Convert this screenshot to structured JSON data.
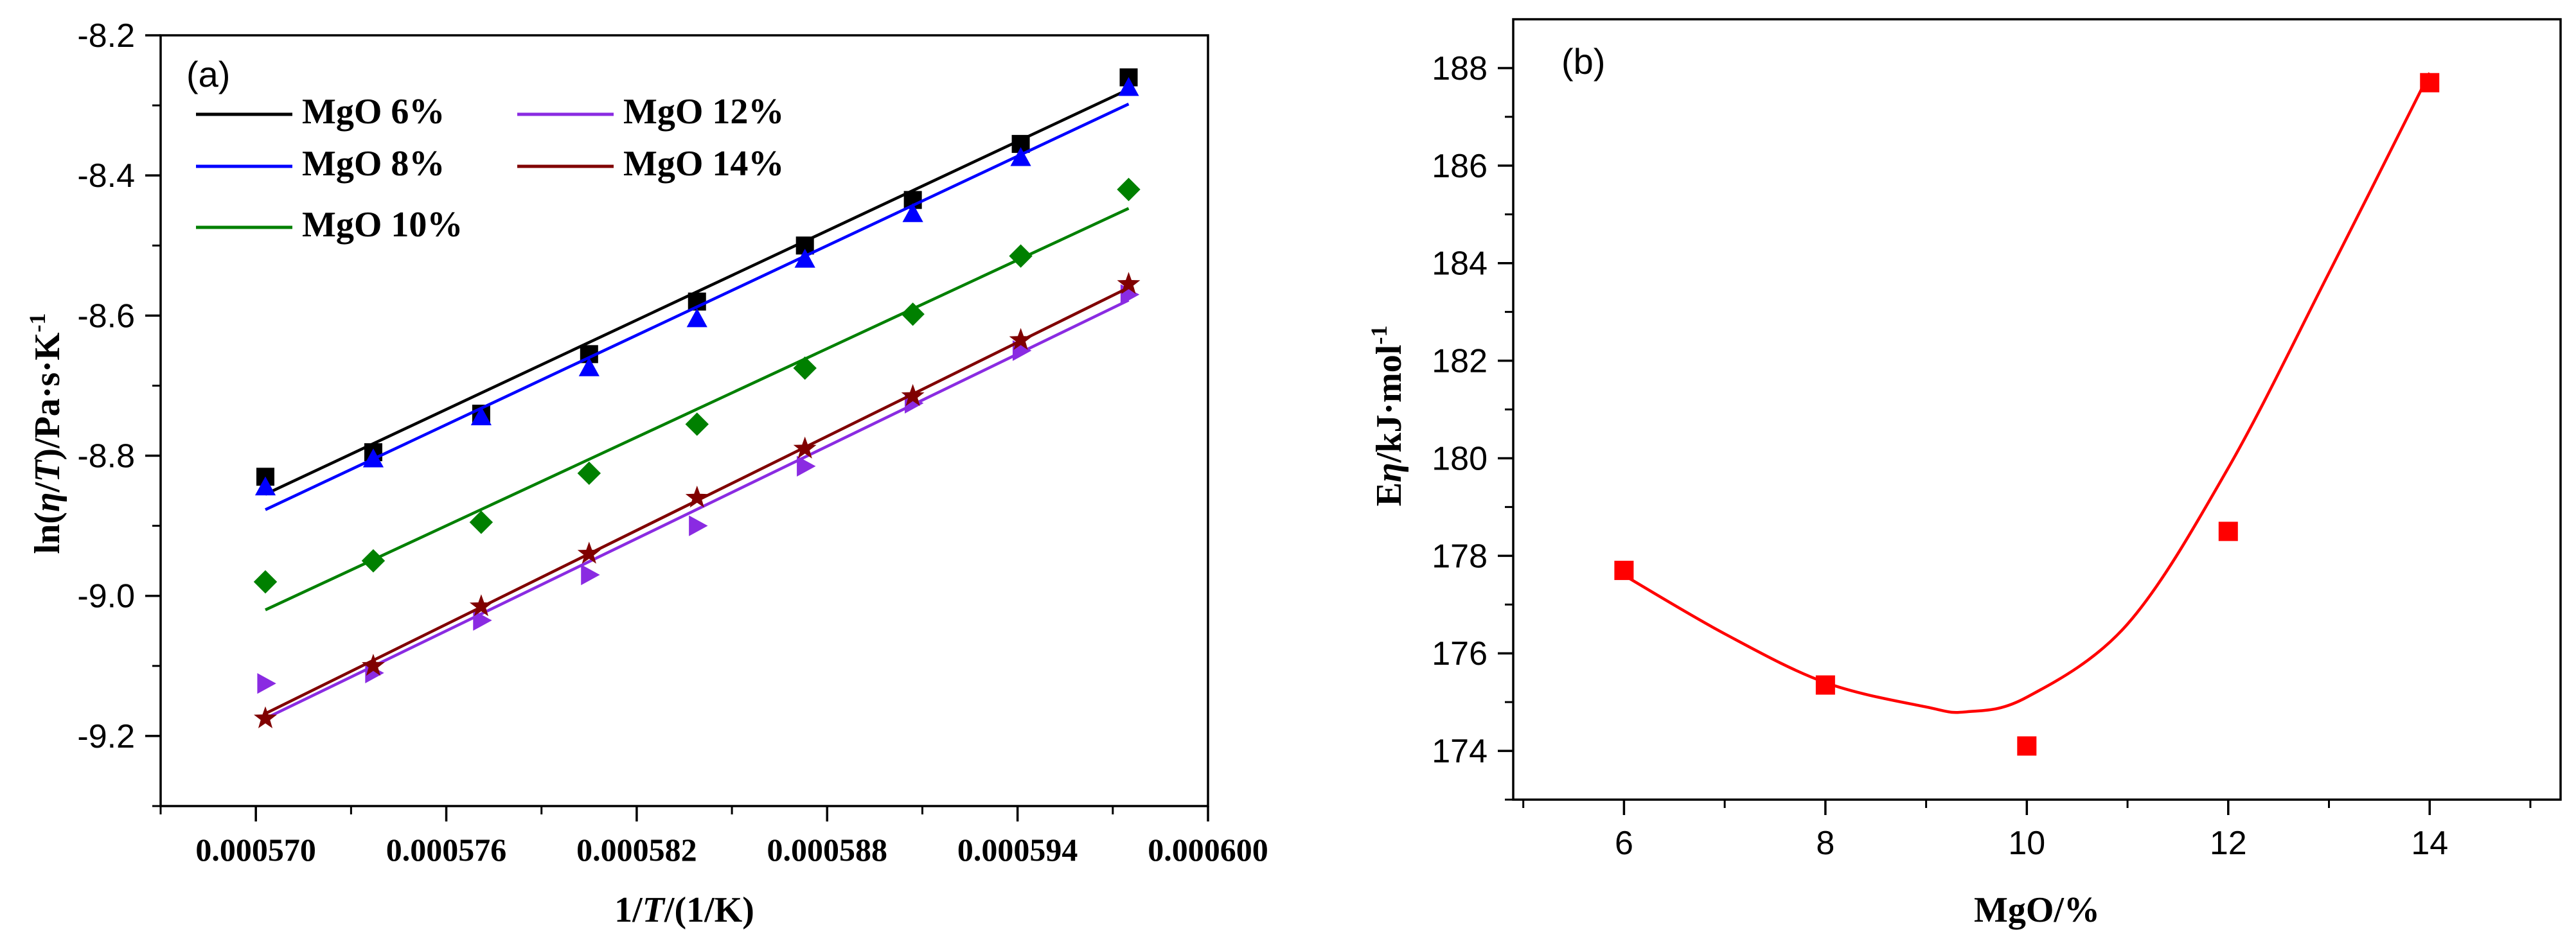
{
  "chart_data": [
    {
      "panel": "(a)",
      "type": "scatter",
      "xlabel_parts": [
        "1/",
        "T",
        "/(1/K)"
      ],
      "ylabel_parts": [
        "ln(",
        "η",
        "/",
        "T",
        ")/Pa·s·K",
        "-1"
      ],
      "xlim": [
        0.000567,
        0.0006
      ],
      "ylim": [
        -9.3,
        -8.2
      ],
      "xticks": [
        0.00057,
        0.000576,
        0.000582,
        0.000588,
        0.000594,
        0.0006
      ],
      "xtick_labels": [
        "0.000570",
        "0.000576",
        "0.000582",
        "0.000588",
        "0.000594",
        "0.000600"
      ],
      "yticks": [
        -9.2,
        -9.0,
        -8.8,
        -8.6,
        -8.4,
        -8.2
      ],
      "ytick_labels": [
        "-9.2",
        "-9.0",
        "-8.8",
        "-8.6",
        "-8.4",
        "-8.2"
      ],
      "x": [
        0.0005703,
        0.0005737,
        0.0005771,
        0.0005805,
        0.0005839,
        0.0005873,
        0.0005907,
        0.0005941,
        0.0005975
      ],
      "series": [
        {
          "name": "MgO 6%",
          "color": "#000000",
          "marker": "square",
          "values": [
            -8.83,
            -8.795,
            -8.74,
            -8.655,
            -8.58,
            -8.5,
            -8.435,
            -8.355,
            -8.26
          ],
          "fit": [
            -8.855,
            -8.277
          ]
        },
        {
          "name": "MgO 8%",
          "color": "#0000ff",
          "marker": "triangle-up",
          "values": [
            -8.845,
            -8.805,
            -8.745,
            -8.675,
            -8.605,
            -8.52,
            -8.455,
            -8.375,
            -8.275
          ],
          "fit": [
            -8.877,
            -8.298
          ]
        },
        {
          "name": "MgO 10%",
          "color": "#008000",
          "marker": "diamond",
          "values": [
            -8.98,
            -8.95,
            -8.895,
            -8.825,
            -8.755,
            -8.675,
            -8.598,
            -8.515,
            -8.42
          ],
          "fit": [
            -9.02,
            -8.447
          ]
        },
        {
          "name": "MgO 12%",
          "color": "#8a2be2",
          "marker": "triangle-right",
          "values": [
            -9.125,
            -9.11,
            -9.035,
            -8.97,
            -8.9,
            -8.815,
            -8.725,
            -8.65,
            -8.57
          ],
          "fit": [
            -9.175,
            -8.578
          ]
        },
        {
          "name": "MgO 14%",
          "color": "#800000",
          "marker": "star",
          "values": [
            -9.175,
            -9.1,
            -9.015,
            -8.94,
            -8.86,
            -8.79,
            -8.715,
            -8.635,
            -8.555
          ],
          "fit": [
            -9.168,
            -8.56
          ]
        }
      ]
    },
    {
      "panel": "(b)",
      "type": "scatter",
      "xlabel": "MgO/%",
      "ylabel_parts": [
        "E",
        "η",
        "/kJ·mol",
        "-1"
      ],
      "xlim": [
        4.9,
        15.3
      ],
      "ylim": [
        173.0,
        189.0
      ],
      "xticks": [
        6,
        8,
        10,
        12,
        14
      ],
      "xtick_labels": [
        "6",
        "8",
        "10",
        "12",
        "14"
      ],
      "yticks": [
        174,
        176,
        178,
        180,
        182,
        184,
        186,
        188
      ],
      "ytick_labels": [
        "174",
        "176",
        "178",
        "180",
        "182",
        "184",
        "186",
        "188"
      ],
      "x": [
        6,
        8,
        10,
        12,
        14
      ],
      "values": [
        177.7,
        175.35,
        174.1,
        178.5,
        187.7
      ],
      "fit_curve": {
        "x": [
          6,
          7,
          8,
          9,
          9.4,
          10,
          11,
          12,
          13,
          14
        ],
        "y": [
          177.6,
          176.4,
          175.4,
          174.9,
          174.8,
          175.1,
          176.6,
          179.8,
          183.8,
          187.9
        ]
      },
      "color": "#ff0000"
    }
  ]
}
